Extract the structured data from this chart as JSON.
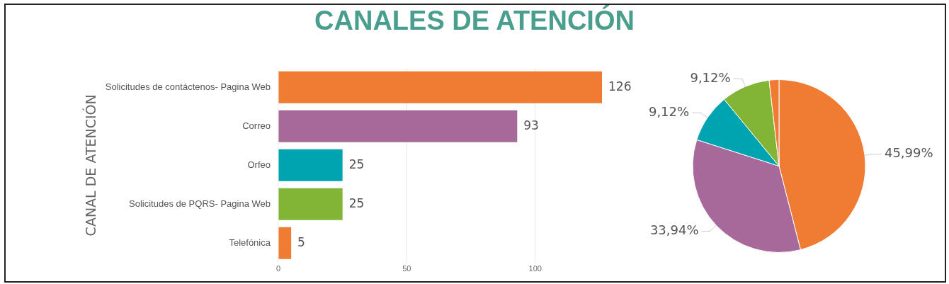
{
  "chart_data": [
    {
      "type": "bar",
      "orientation": "horizontal",
      "title": "CANALES DE ATENCIÓN",
      "ylabel": "CANAL DE ATENCIÓN",
      "categories": [
        "Solicitudes de contáctenos- Pagina Web",
        "Correo",
        "Orfeo",
        "Solicitudes de PQRS- Pagina Web",
        "Telefónica"
      ],
      "values": [
        126,
        93,
        25,
        25,
        5
      ],
      "colors": [
        "#f07b33",
        "#a66999",
        "#00a3b0",
        "#82b536",
        "#f07b33"
      ],
      "xlim": [
        0,
        126
      ],
      "xticks": [
        0,
        50,
        100
      ],
      "grid": "x",
      "data_labels": true
    },
    {
      "type": "pie",
      "categories": [
        null,
        null,
        null,
        null,
        null
      ],
      "values": [
        45.99,
        33.94,
        9.12,
        9.12,
        1.83
      ],
      "colors": [
        "#f07b33",
        "#a66999",
        "#00a3b0",
        "#82b536",
        "#f07b33"
      ],
      "value_labels": [
        "45,99%",
        "33,94%",
        "9,12%",
        "9,12%",
        null
      ]
    }
  ]
}
